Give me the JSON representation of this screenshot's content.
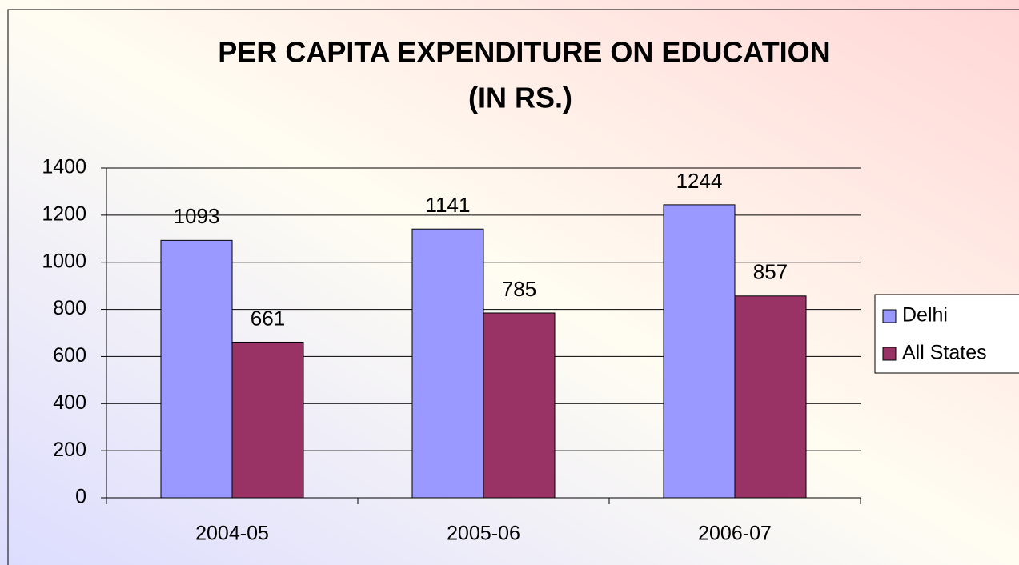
{
  "chart_data": {
    "type": "bar",
    "title": "PER CAPITA EXPENDITURE ON EDUCATION",
    "subtitle": "(IN RS.)",
    "categories": [
      "2004-05",
      "2005-06",
      "2006-07"
    ],
    "series": [
      {
        "name": "Delhi",
        "color": "#9999ff",
        "values": [
          1093,
          1141,
          1244
        ]
      },
      {
        "name": "All States",
        "color": "#993366",
        "values": [
          661,
          785,
          857
        ]
      }
    ],
    "ylim": [
      0,
      1400
    ],
    "yticks": [
      0,
      200,
      400,
      600,
      800,
      1000,
      1200,
      1400
    ],
    "grid": true,
    "legend": "right"
  }
}
